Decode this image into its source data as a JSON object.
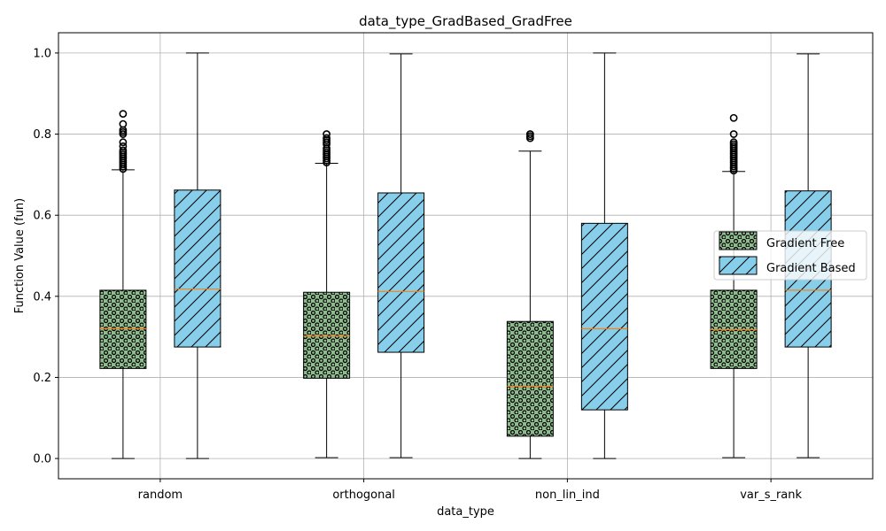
{
  "chart_data": {
    "type": "box",
    "title": "data_type_GradBased_GradFree",
    "xlabel": "data_type",
    "ylabel": "Function Value (fun)",
    "ylim": [
      -0.05,
      1.05
    ],
    "yticks": [
      0.0,
      0.2,
      0.4,
      0.6,
      0.8,
      1.0
    ],
    "ytick_labels": [
      "0.0",
      "0.2",
      "0.4",
      "0.6",
      "0.8",
      "1.0"
    ],
    "categories": [
      "random",
      "orthogonal",
      "non_lin_ind",
      "var_s_rank"
    ],
    "grid": true,
    "legend_position": "center-right",
    "series": [
      {
        "name": "Gradient Free",
        "color": "#8fbc8f",
        "hatch": "dots",
        "boxes": [
          {
            "whislo": 0.0,
            "q1": 0.222,
            "med": 0.32,
            "q3": 0.415,
            "whishi": 0.712,
            "fliers": [
              0.714,
              0.72,
              0.725,
              0.73,
              0.735,
              0.74,
              0.745,
              0.75,
              0.755,
              0.76,
              0.77,
              0.78,
              0.8,
              0.805,
              0.81,
              0.825,
              0.85
            ]
          },
          {
            "whislo": 0.002,
            "q1": 0.198,
            "med": 0.302,
            "q3": 0.41,
            "whishi": 0.728,
            "fliers": [
              0.73,
              0.735,
              0.74,
              0.745,
              0.75,
              0.755,
              0.76,
              0.765,
              0.775,
              0.78,
              0.785,
              0.79,
              0.8
            ]
          },
          {
            "whislo": 0.0,
            "q1": 0.055,
            "med": 0.178,
            "q3": 0.338,
            "whishi": 0.758,
            "fliers": [
              0.79,
              0.795,
              0.8
            ]
          },
          {
            "whislo": 0.002,
            "q1": 0.222,
            "med": 0.318,
            "q3": 0.415,
            "whishi": 0.708,
            "fliers": [
              0.71,
              0.715,
              0.72,
              0.725,
              0.73,
              0.735,
              0.74,
              0.745,
              0.75,
              0.755,
              0.76,
              0.765,
              0.77,
              0.775,
              0.78,
              0.8,
              0.84
            ]
          }
        ]
      },
      {
        "name": "Gradient Based",
        "color": "#87ceeb",
        "hatch": "diagonal",
        "boxes": [
          {
            "whislo": 0.0,
            "q1": 0.275,
            "med": 0.418,
            "q3": 0.662,
            "whishi": 1.0,
            "fliers": []
          },
          {
            "whislo": 0.002,
            "q1": 0.262,
            "med": 0.412,
            "q3": 0.655,
            "whishi": 0.998,
            "fliers": []
          },
          {
            "whislo": 0.0,
            "q1": 0.12,
            "med": 0.32,
            "q3": 0.58,
            "whishi": 1.0,
            "fliers": []
          },
          {
            "whislo": 0.002,
            "q1": 0.275,
            "med": 0.415,
            "q3": 0.66,
            "whishi": 0.998,
            "fliers": []
          }
        ]
      }
    ],
    "median_color": "#ff7f0e"
  }
}
